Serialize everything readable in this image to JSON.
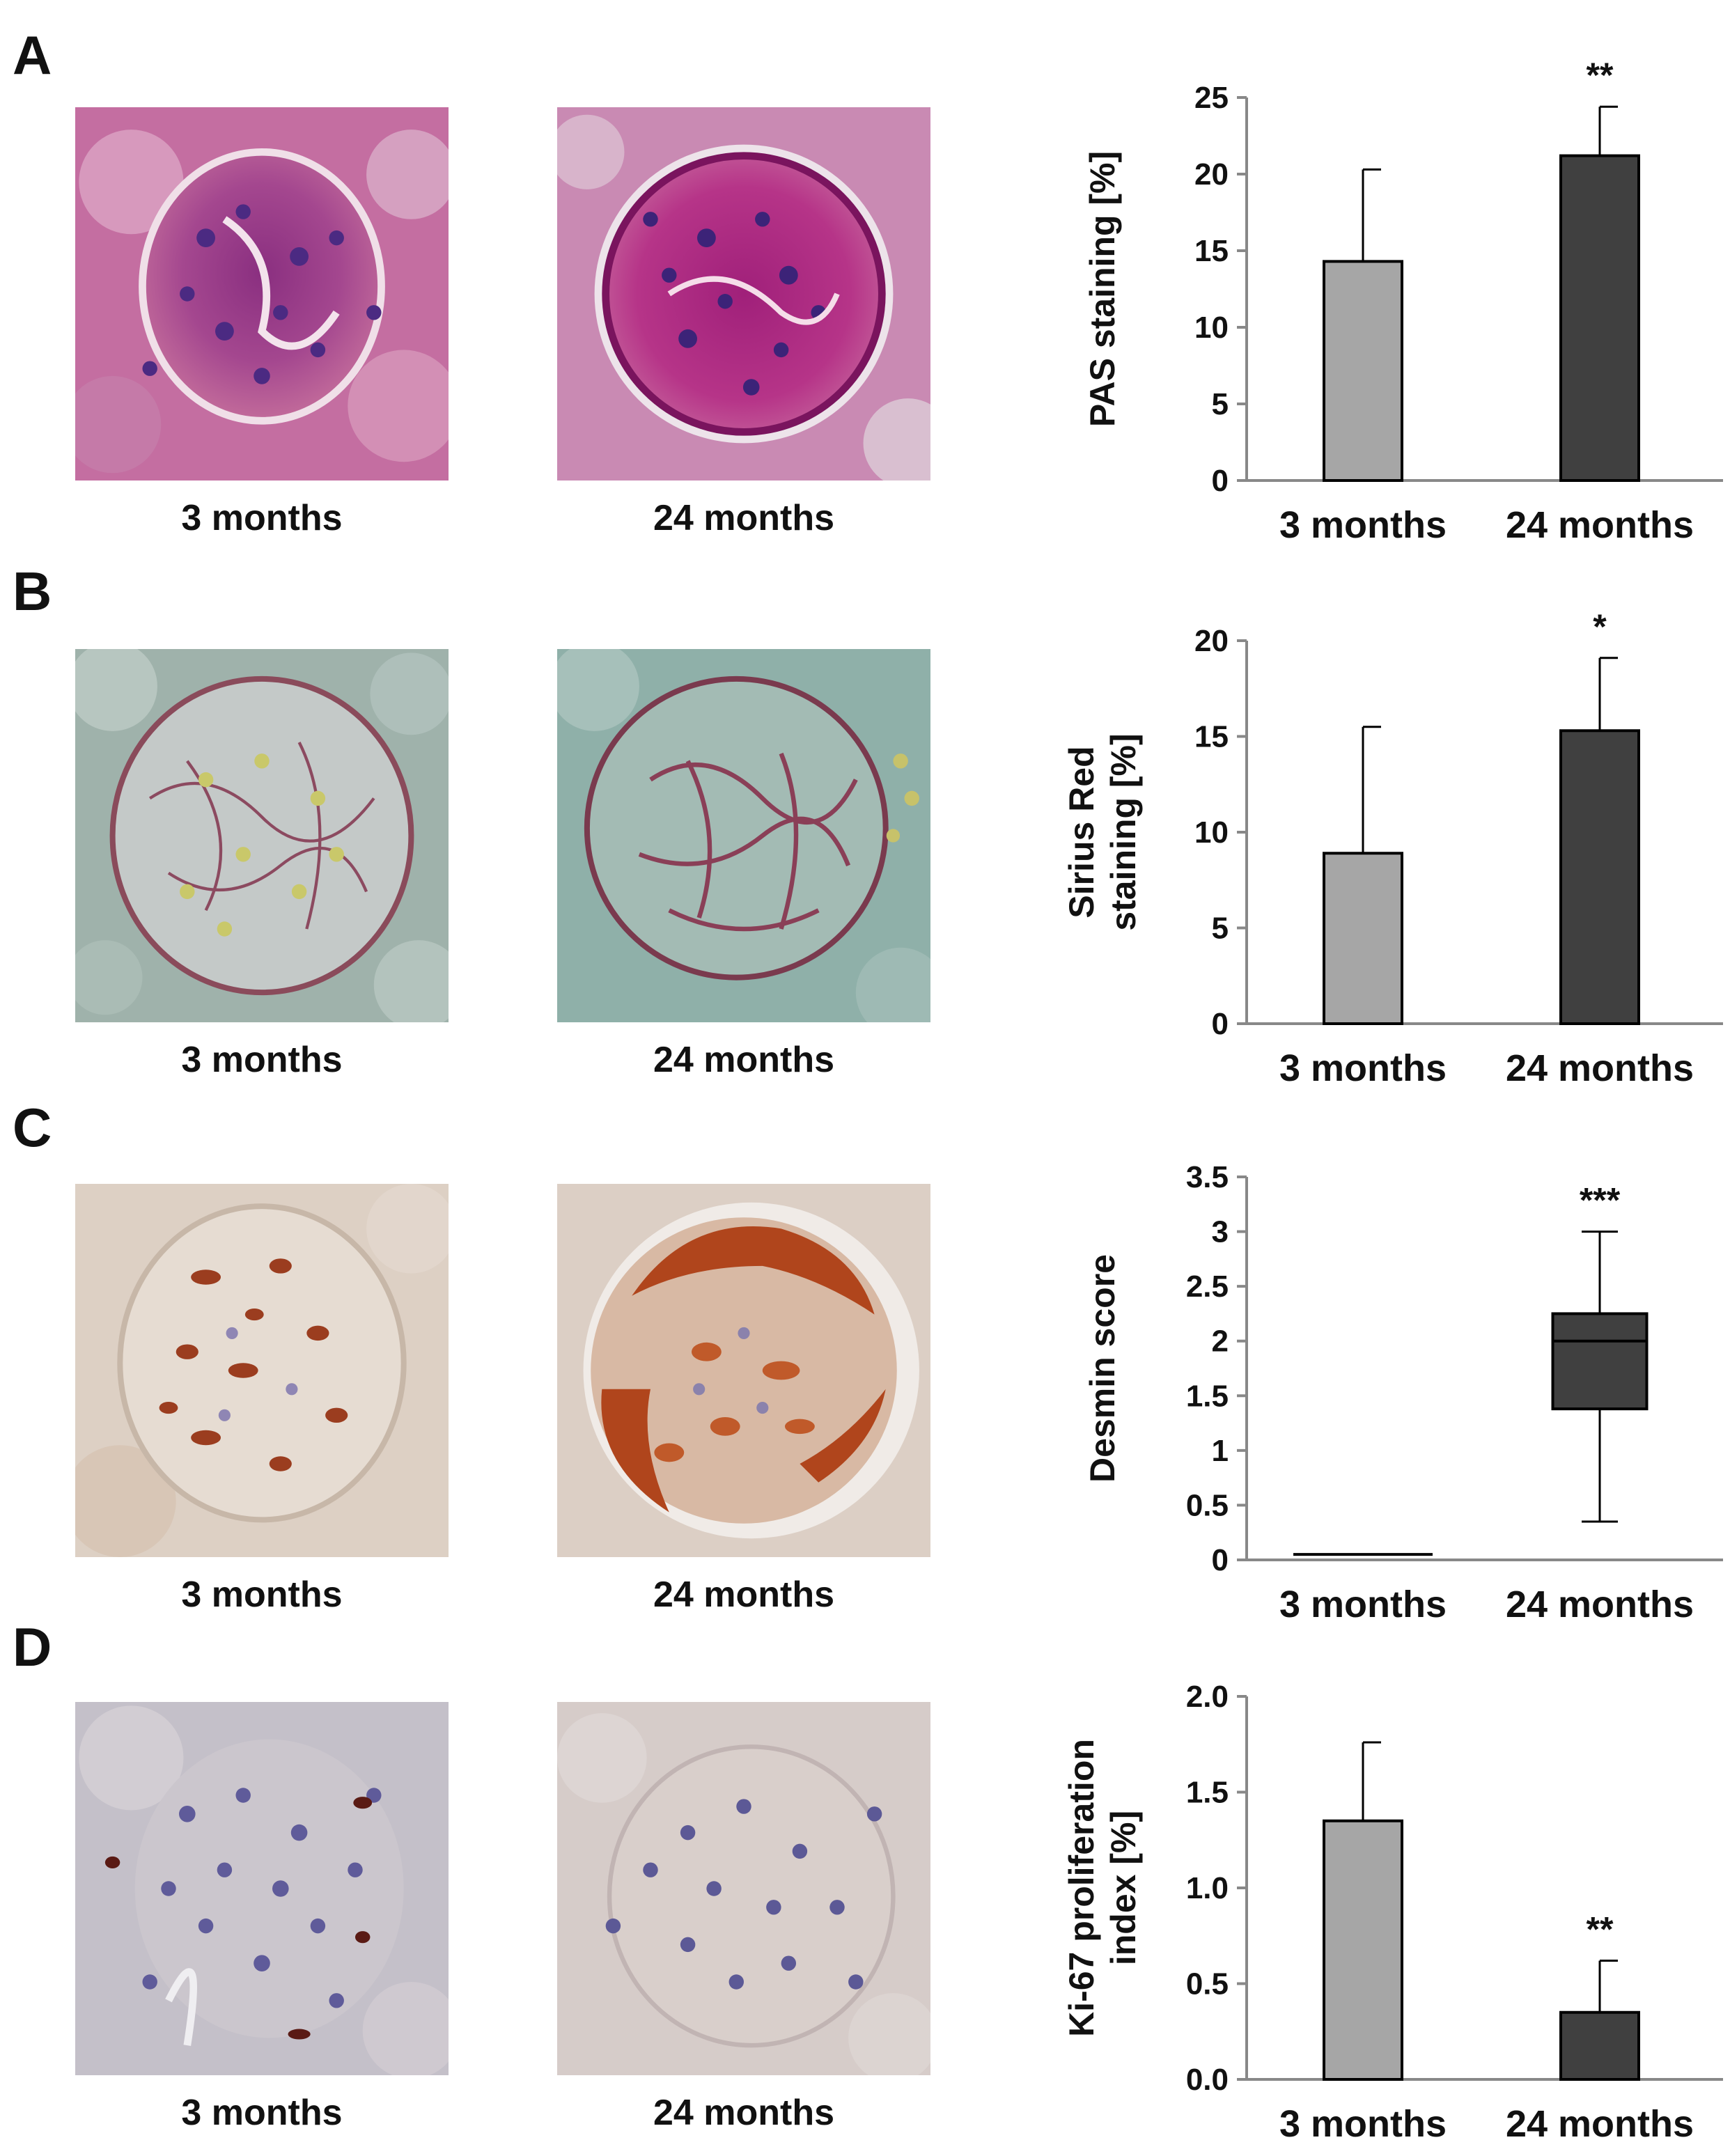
{
  "panels": [
    {
      "letter": "A",
      "images": [
        {
          "caption": "3 months",
          "stain": "pas-3m"
        },
        {
          "caption": "24 months",
          "stain": "pas-24m"
        }
      ]
    },
    {
      "letter": "B",
      "images": [
        {
          "caption": "3 months",
          "stain": "sirius-3m"
        },
        {
          "caption": "24 months",
          "stain": "sirius-24m"
        }
      ]
    },
    {
      "letter": "C",
      "images": [
        {
          "caption": "3 months",
          "stain": "desmin-3m"
        },
        {
          "caption": "24 months",
          "stain": "desmin-24m"
        }
      ]
    },
    {
      "letter": "D",
      "images": [
        {
          "caption": "3 months",
          "stain": "ki67-3m"
        },
        {
          "caption": "24 months",
          "stain": "ki67-24m"
        }
      ]
    }
  ],
  "colors": {
    "bar_3m": "#a6a6a6",
    "bar_24m": "#404040",
    "axis": "#888888"
  },
  "chart_data": [
    {
      "type": "bar",
      "title": "",
      "xlabel": "",
      "ylabel": [
        "PAS staining [%]"
      ],
      "categories": [
        "3 months",
        "24 months"
      ],
      "values": [
        14.3,
        21.2
      ],
      "errors": [
        6.0,
        3.2
      ],
      "ylim": [
        0,
        25
      ],
      "ticks": [
        "0",
        "5",
        "10",
        "15",
        "20",
        "25"
      ],
      "annotations": [
        "",
        "**"
      ],
      "grid": false,
      "legend": "none"
    },
    {
      "type": "bar",
      "title": "",
      "xlabel": "",
      "ylabel": [
        "Sirius Red",
        "staining [%]"
      ],
      "categories": [
        "3 months",
        "24 months"
      ],
      "values": [
        8.9,
        15.3
      ],
      "errors": [
        6.6,
        3.8
      ],
      "ylim": [
        0,
        20
      ],
      "ticks": [
        "0",
        "5",
        "10",
        "15",
        "20"
      ],
      "annotations": [
        "",
        "*"
      ],
      "grid": false,
      "legend": "none"
    },
    {
      "type": "box",
      "title": "",
      "xlabel": "",
      "ylabel": [
        "Desmin score"
      ],
      "categories": [
        "3 months",
        "24 months"
      ],
      "boxes": [
        {
          "min": 0.05,
          "q1": 0.05,
          "median": 0.05,
          "q3": 0.05,
          "max": 0.05
        },
        {
          "min": 0.35,
          "q1": 1.38,
          "median": 2.0,
          "q3": 2.25,
          "max": 3.0
        }
      ],
      "ylim": [
        0,
        3.5
      ],
      "ticks": [
        "0",
        "0.5",
        "1",
        "1.5",
        "2",
        "2.5",
        "3",
        "3.5"
      ],
      "annotations": [
        "",
        "***"
      ],
      "grid": false,
      "legend": "none"
    },
    {
      "type": "bar",
      "title": "",
      "xlabel": "",
      "ylabel": [
        "Ki-67 proliferation",
        "index [%]"
      ],
      "categories": [
        "3 months",
        "24 months"
      ],
      "values": [
        1.35,
        0.35
      ],
      "errors": [
        0.41,
        0.27
      ],
      "ylim": [
        0,
        2.0
      ],
      "ticks": [
        "0.0",
        "0.5",
        "1.0",
        "1.5",
        "2.0"
      ],
      "annotations": [
        "",
        "**"
      ],
      "grid": false,
      "legend": "none"
    }
  ]
}
